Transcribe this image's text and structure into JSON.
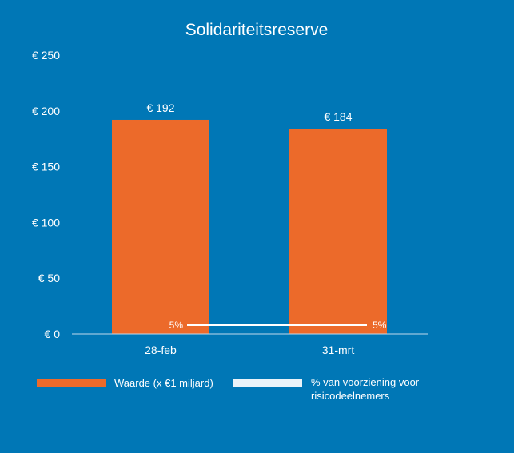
{
  "chart_data": {
    "type": "bar",
    "title": "Solidariteitsreserve",
    "categories": [
      "28-feb",
      "31-mrt"
    ],
    "series": [
      {
        "name": "Waarde (x €1 miljard)",
        "type": "bar",
        "values": [
          192,
          184
        ],
        "data_labels": [
          "€ 192",
          "€ 184"
        ],
        "color": "#EC6A2A"
      },
      {
        "name": "% van voorziening voor risicodeelnemers",
        "name_lines": [
          "% van voorziening voor",
          "risicodeelnemers"
        ],
        "type": "line",
        "values": [
          5,
          5
        ],
        "data_labels": [
          "5%",
          "5%"
        ],
        "color": "#FFFFFF"
      }
    ],
    "yaxis": {
      "ticks": [
        0,
        50,
        100,
        150,
        200,
        250
      ],
      "tick_labels": [
        "€ 0",
        "€ 50",
        "€ 100",
        "€ 150",
        "€ 200",
        "€ 250"
      ],
      "ylim": [
        0,
        250
      ]
    },
    "xlabel": "",
    "ylabel": "",
    "grid": false,
    "legend_position": "bottom",
    "background_color": "#0077B6",
    "axis_line_color": "#BFD9EC"
  }
}
